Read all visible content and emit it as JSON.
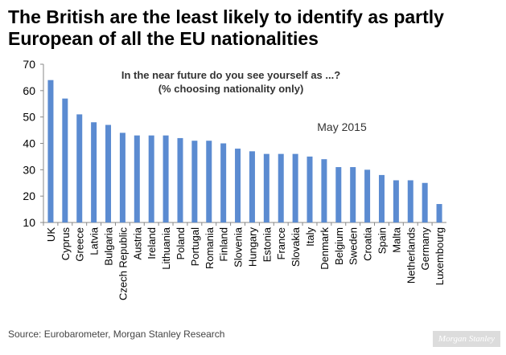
{
  "title": "The British are the least likely to identify as partly European of all the EU nationalities",
  "source": "Source: Eurobarometer, Morgan Stanley Research",
  "watermark": "Morgan Stanley",
  "colors": {
    "bar": "#5b8bd1",
    "axis": "#888888",
    "text": "#000000",
    "annotation": "#333333"
  },
  "chart_data": {
    "type": "bar",
    "subtitle": [
      "In the near future do you see yourself as ...?",
      "(% choosing nationality only)"
    ],
    "annotation": "May 2015",
    "xlabel": "",
    "ylabel": "",
    "ylim": [
      10,
      70
    ],
    "yticks": [
      10,
      20,
      30,
      40,
      50,
      60,
      70
    ],
    "grid": false,
    "categories": [
      "UK",
      "Cyprus",
      "Greece",
      "Latvia",
      "Bulgaria",
      "Czech Republic",
      "Austria",
      "Ireland",
      "Lithuania",
      "Poland",
      "Portugal",
      "Romania",
      "Finland",
      "Slovenia",
      "Hungary",
      "Estonia",
      "France",
      "Slovakia",
      "Italy",
      "Denmark",
      "Belgium",
      "Sweden",
      "Croatia",
      "Spain",
      "Malta",
      "Netherlands",
      "Germany",
      "Luxembourg"
    ],
    "values": [
      64,
      57,
      51,
      48,
      47,
      44,
      43,
      43,
      43,
      42,
      41,
      41,
      40,
      38,
      37,
      36,
      36,
      36,
      35,
      34,
      31,
      31,
      30,
      28,
      26,
      26,
      25,
      17
    ]
  }
}
